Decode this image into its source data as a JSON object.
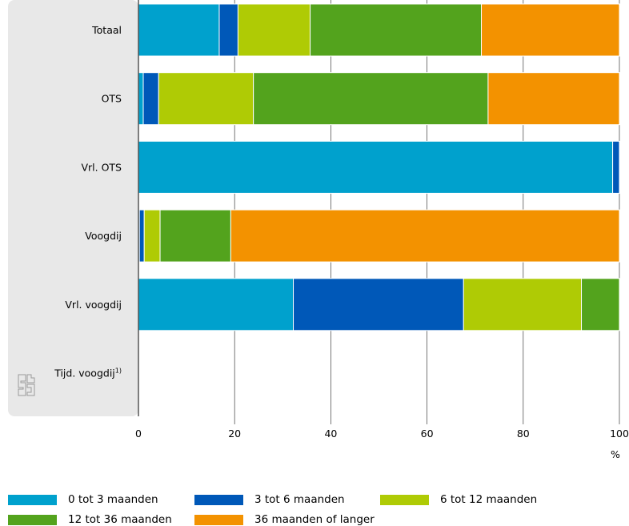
{
  "chart_data": {
    "type": "bar",
    "orientation": "horizontal",
    "stacked": true,
    "categories": [
      "Totaal",
      "OTS",
      "Vrl. OTS",
      "Voogdij",
      "Vrl. voogdij",
      "Tijd. voogdij"
    ],
    "category_footnotes": [
      "",
      "",
      "",
      "",
      "",
      "1)"
    ],
    "series": [
      {
        "name": "0 tot 3 maanden",
        "color": "#00a1cd",
        "values": [
          16.8,
          1.0,
          98.6,
          0.2,
          32.2,
          0
        ]
      },
      {
        "name": "3 tot 6 maanden",
        "color": "#0058b8",
        "values": [
          3.9,
          3.2,
          1.4,
          1.0,
          35.4,
          0
        ]
      },
      {
        "name": "6 tot 12 maanden",
        "color": "#afcb05",
        "values": [
          15.0,
          19.7,
          0.0,
          3.3,
          24.5,
          0
        ]
      },
      {
        "name": "12 tot 36 maanden",
        "color": "#53a31d",
        "values": [
          35.6,
          48.8,
          0.0,
          14.7,
          7.9,
          0
        ]
      },
      {
        "name": "36 maanden of langer",
        "color": "#f39200",
        "values": [
          28.7,
          27.3,
          0.0,
          80.8,
          0.0,
          0
        ]
      }
    ],
    "xlim": [
      0,
      100
    ],
    "xticks": [
      0,
      20,
      40,
      60,
      80,
      100
    ],
    "unit": "%",
    "grid": true,
    "legend_position": "bottom"
  },
  "logo": {
    "name": "cbs-logo",
    "text": "cbs"
  }
}
